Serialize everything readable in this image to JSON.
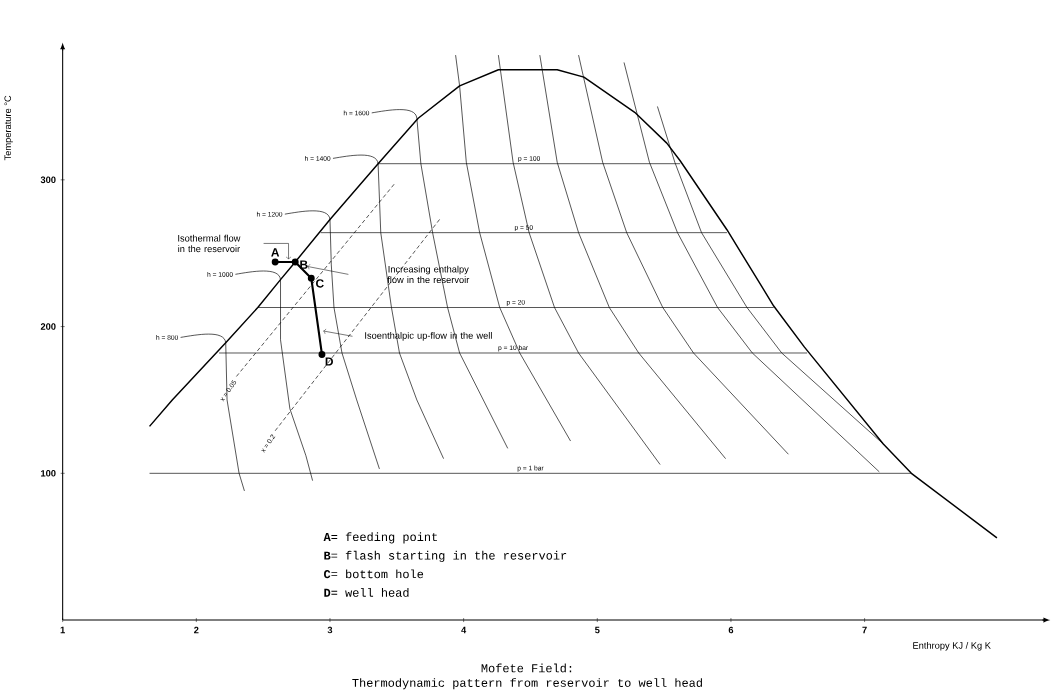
{
  "chart_data": {
    "type": "line",
    "title": "Mofete Field:",
    "subtitle": "Thermodynamic pattern from reservoir to well head",
    "xlabel": "Enthropy    KJ / Kg  K",
    "ylabel": "Temperature  °C",
    "xlim": [
      1,
      8.35
    ],
    "ylim": [
      0,
      390
    ],
    "xticks": [
      1,
      2,
      3,
      4,
      5,
      6,
      7
    ],
    "yticks": [
      100,
      200,
      300
    ],
    "series": [
      {
        "color": "#000000",
        "line_style": "solid",
        "x": [
          1.65,
          1.82,
          2.22,
          2.46,
          2.63,
          2.74,
          3.0,
          3.36,
          3.66,
          3.97,
          4.26,
          4.7,
          4.9,
          5.28,
          5.52,
          5.62,
          5.97,
          6.32,
          6.55,
          7.14,
          7.35,
          7.99
        ],
        "values": [
          132,
          150,
          189,
          213,
          232,
          244,
          273,
          311,
          342,
          364,
          375,
          375,
          370,
          346,
          325,
          313,
          266,
          214,
          186,
          120,
          100,
          56
        ]
      },
      {
        "name": "p = 100",
        "color": "#000000",
        "line_style": "solid",
        "x": [
          3.36,
          5.62
        ],
        "values": [
          311,
          311
        ]
      },
      {
        "name": "p = 50",
        "color": "#000000",
        "line_style": "solid",
        "x": [
          2.93,
          5.97
        ],
        "values": [
          264,
          264
        ]
      },
      {
        "name": "p = 20",
        "color": "#000000",
        "line_style": "solid",
        "x": [
          2.46,
          6.32
        ],
        "values": [
          213,
          213
        ]
      },
      {
        "name": "p = 10 bar",
        "color": "#000000",
        "line_style": "solid",
        "x": [
          2.17,
          6.57
        ],
        "values": [
          182,
          182
        ]
      },
      {
        "name": "p = 1 bar",
        "color": "#000000",
        "line_style": "solid",
        "x": [
          1.65,
          7.35
        ],
        "values": [
          100,
          100
        ]
      },
      {
        "name": "h = 800",
        "color": "#000000",
        "line_style": "solid",
        "x": [
          2.22,
          2.23,
          2.32,
          2.36
        ],
        "values": [
          189,
          150,
          100,
          88
        ]
      },
      {
        "name": "h = 1000",
        "color": "#000000",
        "line_style": "solid",
        "x": [
          2.63,
          2.63,
          2.7,
          2.82,
          2.87
        ],
        "values": [
          232,
          191,
          144,
          112,
          95
        ]
      },
      {
        "name": "h = 1200",
        "color": "#000000",
        "line_style": "solid",
        "x": [
          3.0,
          3.01,
          3.03,
          3.09,
          3.2,
          3.37
        ],
        "values": [
          273,
          242,
          213,
          182,
          150,
          103
        ]
      },
      {
        "name": "h = 1400",
        "color": "#000000",
        "line_style": "solid",
        "x": [
          3.36,
          3.38,
          3.46,
          3.52,
          3.65,
          3.85
        ],
        "values": [
          311,
          264,
          213,
          182,
          150,
          110
        ]
      },
      {
        "name": "h = 1600",
        "color": "#000000",
        "line_style": "solid",
        "x": [
          3.65,
          3.68,
          3.77,
          3.88,
          3.97,
          4.33
        ],
        "values": [
          342,
          311,
          263,
          213,
          182,
          117
        ]
      },
      {
        "color": "#000000",
        "line_style": "solid",
        "x": [
          3.94,
          3.97,
          4.02,
          4.12,
          4.27,
          4.42,
          4.8
        ],
        "values": [
          385,
          364,
          312,
          264,
          213,
          182,
          122
        ]
      },
      {
        "color": "#000000",
        "line_style": "solid",
        "x": [
          4.26,
          4.37,
          4.49,
          4.68,
          4.86,
          5.47
        ],
        "values": [
          385,
          312,
          264,
          213,
          182,
          106
        ]
      },
      {
        "color": "#000000",
        "line_style": "solid",
        "x": [
          4.57,
          4.7,
          4.86,
          5.09,
          5.31,
          5.96
        ],
        "values": [
          385,
          312,
          264,
          213,
          182,
          110
        ]
      },
      {
        "color": "#000000",
        "line_style": "solid",
        "x": [
          4.86,
          5.04,
          5.22,
          5.49,
          5.72,
          6.43
        ],
        "values": [
          385,
          312,
          264,
          213,
          182,
          113
        ]
      },
      {
        "color": "#000000",
        "line_style": "solid",
        "x": [
          5.2,
          5.39,
          5.6,
          5.9,
          6.16,
          7.11
        ],
        "values": [
          380,
          312,
          264,
          213,
          182,
          101
        ]
      },
      {
        "color": "#000000",
        "line_style": "solid",
        "x": [
          5.45,
          5.58,
          5.78,
          6.12,
          6.38,
          7.14
        ],
        "values": [
          350,
          312,
          264,
          213,
          182,
          120
        ]
      },
      {
        "name": "x = 0.05",
        "color": "#000000",
        "line_style": "dashed",
        "x": [
          2.3,
          3.48
        ],
        "values": [
          166,
          297
        ]
      },
      {
        "name": "x = 0.2",
        "color": "#000000",
        "line_style": "dashed",
        "x": [
          2.59,
          3.82
        ],
        "values": [
          129,
          273
        ]
      },
      {
        "color": "#000000",
        "line_style": "solid",
        "marker": "circle",
        "x": [
          2.59,
          2.74,
          2.86,
          2.94
        ],
        "values": [
          244,
          244,
          233,
          181
        ]
      }
    ],
    "annotations": [
      "Isothermal flow in the reservoir",
      "Increasing enthalpy flow in the reservoir",
      "Isoenthalpic up-flow in the well",
      {
        "text": "**A**",
        "x": 2.59,
        "y": 244
      },
      {
        "text": "**B**",
        "x": 2.74,
        "y": 244
      },
      {
        "text": "**C**",
        "x": 2.86,
        "y": 233
      },
      {
        "text": "**D**",
        "x": 2.94,
        "y": 181
      },
      "**A**= feeding point",
      "**B**= flash starting in the reservoir",
      "**C**= bottom hole",
      "**D**= well head"
    ]
  }
}
